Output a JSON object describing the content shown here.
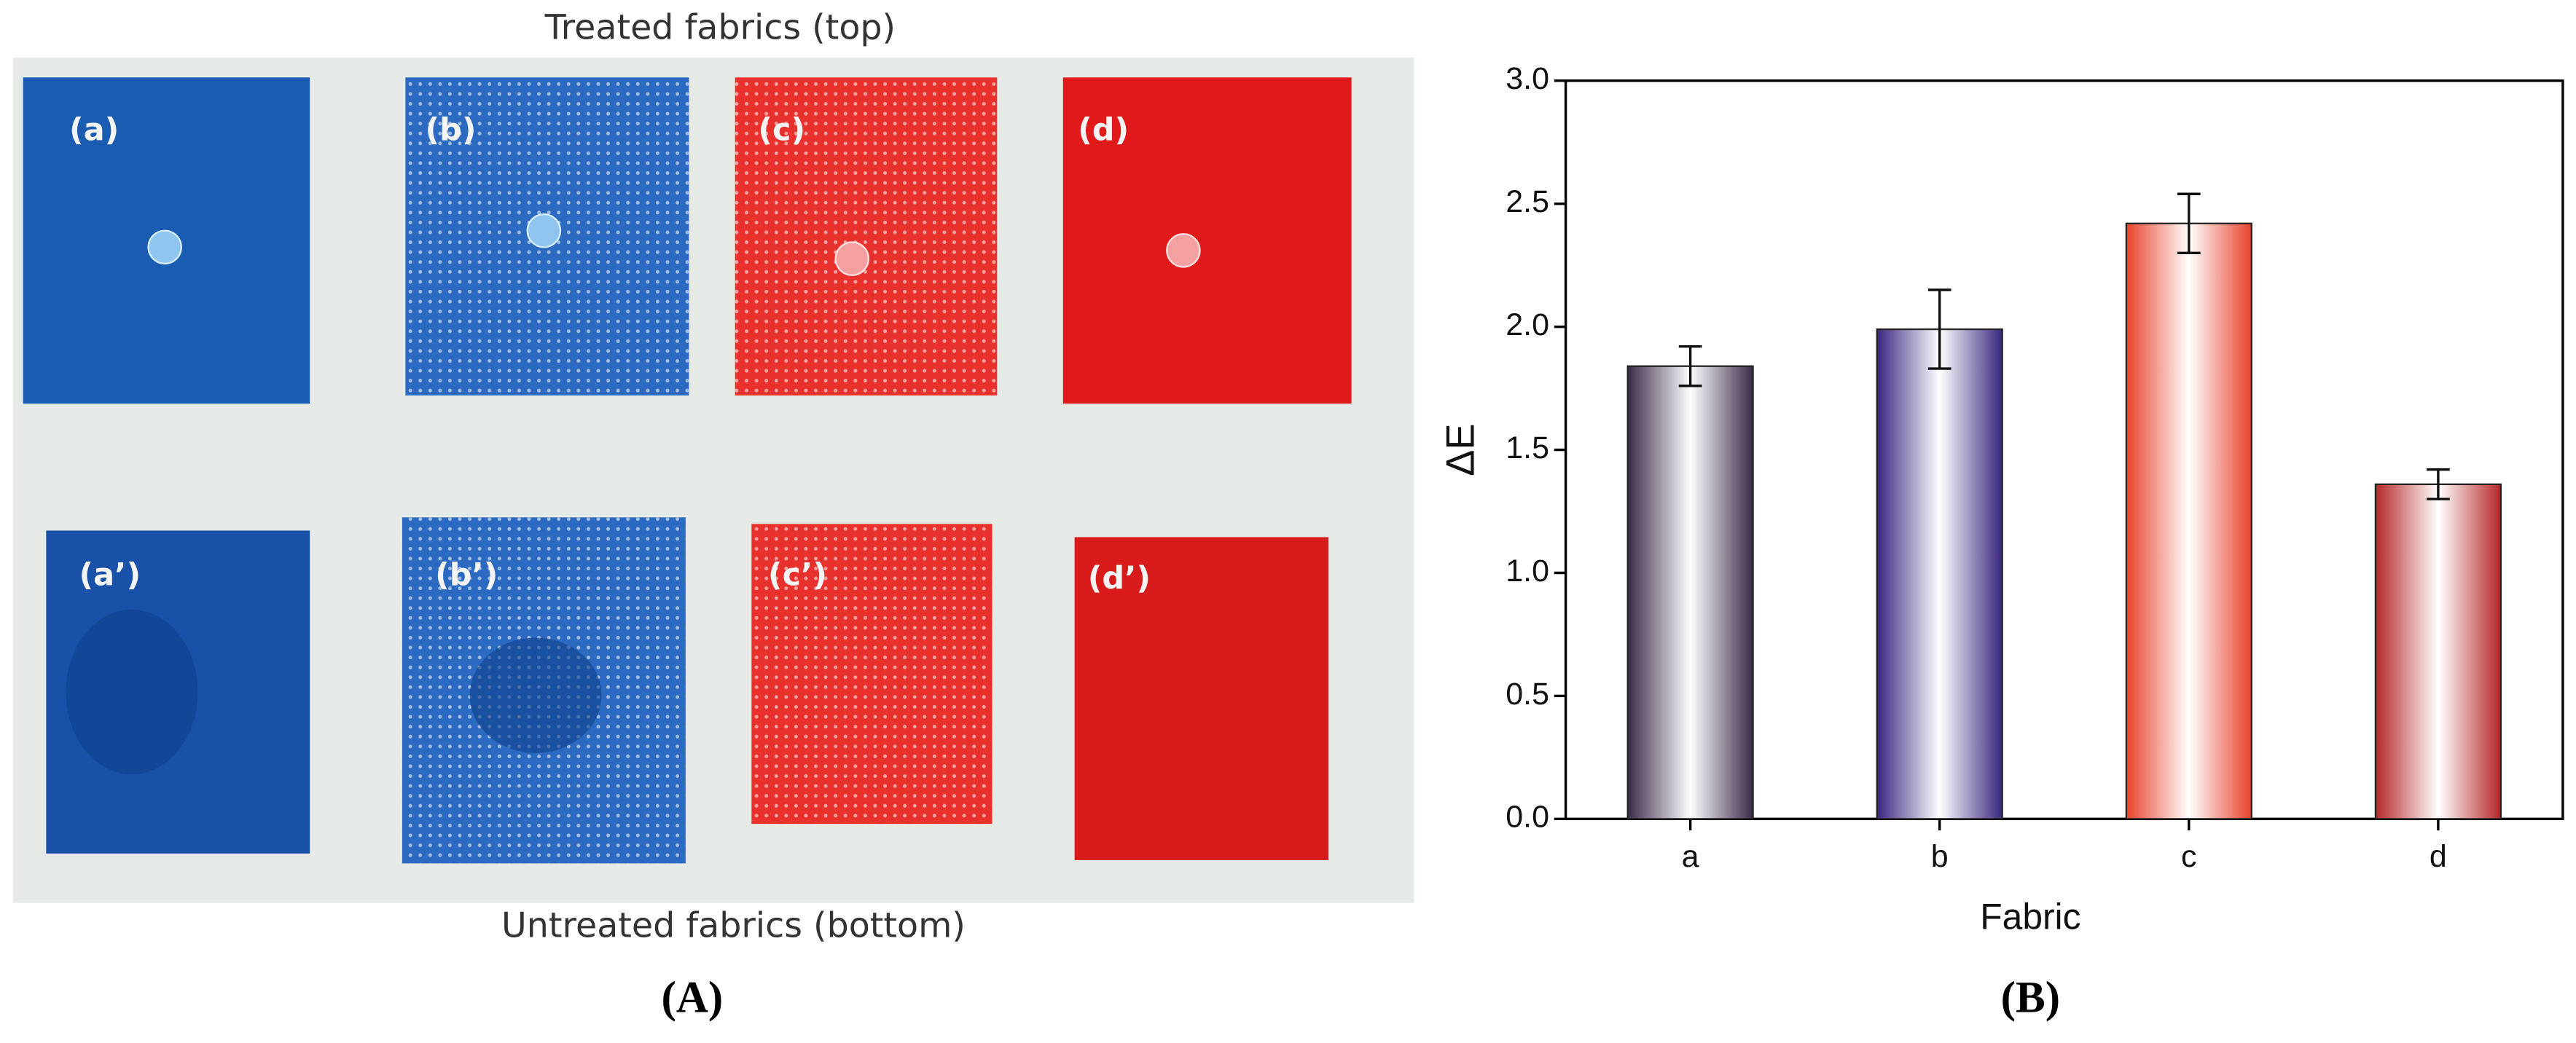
{
  "photo_panel": {
    "top_caption": "Treated fabrics (top)",
    "bottom_caption": "Untreated fabrics (bottom)",
    "panel_label": "(A)",
    "top_labels": [
      "(a)",
      "(b)",
      "(c)",
      "(d)"
    ],
    "bottom_labels": [
      "(a’)",
      "(b’)",
      "(c’)",
      "(d’)"
    ]
  },
  "chart_data": {
    "type": "bar",
    "panel_label": "(B)",
    "x_label": "Fabric",
    "y_label": "ΔE",
    "categories": [
      "a",
      "b",
      "c",
      "d"
    ],
    "values": [
      1.84,
      1.99,
      2.42,
      1.36
    ],
    "errors": [
      0.08,
      0.16,
      0.12,
      0.06
    ],
    "colors": [
      "#3a2a48",
      "#3a2680",
      "#e8432c",
      "#b52828"
    ],
    "ylim": [
      0,
      3
    ],
    "yticks": [
      {
        "value": 0,
        "label": "0.0"
      },
      0.5,
      {
        "value": 1,
        "label": "1.0"
      },
      1.5,
      {
        "value": 2,
        "label": "2.0"
      },
      2.5,
      {
        "value": 3,
        "label": "3.0"
      }
    ]
  }
}
